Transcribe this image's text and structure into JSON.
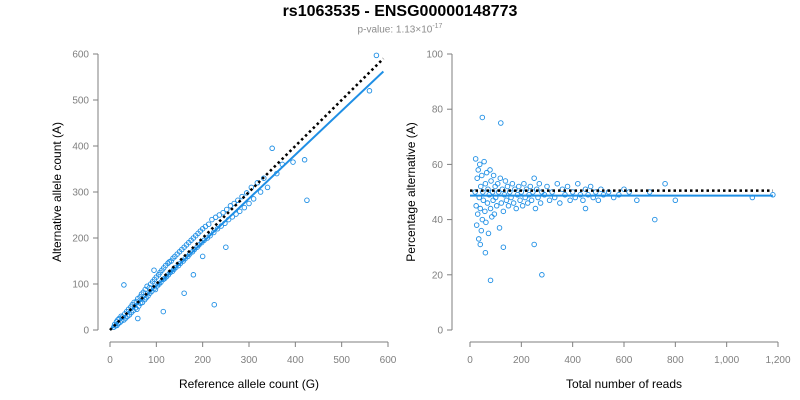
{
  "header": {
    "title": "rs1063535 - ENSG00000148773",
    "pvalue_prefix": "p-value: 1.13×10",
    "pvalue_exponent": "-17"
  },
  "colors": {
    "points": "#1f8fe5",
    "fit": "#1f8fe5",
    "reference": "#000000",
    "axis": "#7f7f7f"
  },
  "chart_data": [
    {
      "type": "scatter",
      "xlabel": "Reference allele count (G)",
      "ylabel": "Alternative allele count (A)",
      "xlim": [
        0,
        600
      ],
      "ylim": [
        0,
        600
      ],
      "xticks": [
        0,
        100,
        200,
        300,
        400,
        500,
        600
      ],
      "yticks": [
        0,
        100,
        200,
        300,
        400,
        500,
        600
      ],
      "xtick_labels": [
        "0",
        "100",
        "200",
        "300",
        "400",
        "500",
        "600"
      ],
      "ytick_labels": [
        "0",
        "100",
        "200",
        "300",
        "400",
        "500",
        "600"
      ],
      "reference_line": {
        "style": "dotted",
        "points": [
          [
            0,
            0
          ],
          [
            590,
            590
          ]
        ]
      },
      "fit_line": {
        "style": "solid",
        "points": [
          [
            0,
            0
          ],
          [
            590,
            562
          ]
        ]
      },
      "points": [
        [
          8,
          6
        ],
        [
          10,
          12
        ],
        [
          12,
          9
        ],
        [
          14,
          18
        ],
        [
          15,
          10
        ],
        [
          17,
          22
        ],
        [
          18,
          14
        ],
        [
          20,
          25
        ],
        [
          22,
          17
        ],
        [
          24,
          30
        ],
        [
          25,
          20
        ],
        [
          27,
          28
        ],
        [
          30,
          22
        ],
        [
          32,
          35
        ],
        [
          34,
          26
        ],
        [
          36,
          40
        ],
        [
          38,
          30
        ],
        [
          40,
          45
        ],
        [
          42,
          33
        ],
        [
          45,
          50
        ],
        [
          46,
          38
        ],
        [
          48,
          55
        ],
        [
          50,
          42
        ],
        [
          52,
          60
        ],
        [
          55,
          48
        ],
        [
          57,
          62
        ],
        [
          58,
          45
        ],
        [
          60,
          68
        ],
        [
          62,
          52
        ],
        [
          65,
          72
        ],
        [
          66,
          58
        ],
        [
          68,
          78
        ],
        [
          70,
          60
        ],
        [
          72,
          82
        ],
        [
          75,
          66
        ],
        [
          76,
          88
        ],
        [
          78,
          70
        ],
        [
          80,
          95
        ],
        [
          82,
          74
        ],
        [
          85,
          92
        ],
        [
          86,
          80
        ],
        [
          88,
          100
        ],
        [
          90,
          84
        ],
        [
          92,
          105
        ],
        [
          95,
          90
        ],
        [
          96,
          110
        ],
        [
          98,
          88
        ],
        [
          100,
          115
        ],
        [
          102,
          96
        ],
        [
          105,
          120
        ],
        [
          106,
          100
        ],
        [
          108,
          125
        ],
        [
          110,
          104
        ],
        [
          112,
          130
        ],
        [
          115,
          110
        ],
        [
          116,
          135
        ],
        [
          118,
          112
        ],
        [
          120,
          140
        ],
        [
          122,
          116
        ],
        [
          125,
          145
        ],
        [
          126,
          120
        ],
        [
          128,
          148
        ],
        [
          130,
          125
        ],
        [
          132,
          150
        ],
        [
          135,
          128
        ],
        [
          136,
          156
        ],
        [
          138,
          132
        ],
        [
          140,
          160
        ],
        [
          142,
          136
        ],
        [
          145,
          165
        ],
        [
          148,
          140
        ],
        [
          150,
          170
        ],
        [
          152,
          145
        ],
        [
          155,
          175
        ],
        [
          158,
          150
        ],
        [
          160,
          180
        ],
        [
          162,
          155
        ],
        [
          165,
          185
        ],
        [
          168,
          160
        ],
        [
          170,
          190
        ],
        [
          172,
          165
        ],
        [
          175,
          195
        ],
        [
          178,
          170
        ],
        [
          180,
          200
        ],
        [
          182,
          175
        ],
        [
          185,
          205
        ],
        [
          188,
          180
        ],
        [
          190,
          210
        ],
        [
          192,
          185
        ],
        [
          195,
          215
        ],
        [
          198,
          190
        ],
        [
          200,
          220
        ],
        [
          203,
          195
        ],
        [
          206,
          225
        ],
        [
          210,
          200
        ],
        [
          213,
          230
        ],
        [
          216,
          205
        ],
        [
          220,
          240
        ],
        [
          224,
          212
        ],
        [
          228,
          245
        ],
        [
          232,
          220
        ],
        [
          236,
          250
        ],
        [
          240,
          226
        ],
        [
          244,
          255
        ],
        [
          248,
          232
        ],
        [
          252,
          262
        ],
        [
          256,
          240
        ],
        [
          260,
          270
        ],
        [
          264,
          246
        ],
        [
          268,
          275
        ],
        [
          272,
          252
        ],
        [
          276,
          282
        ],
        [
          280,
          258
        ],
        [
          285,
          290
        ],
        [
          290,
          266
        ],
        [
          295,
          298
        ],
        [
          300,
          275
        ],
        [
          305,
          310
        ],
        [
          310,
          285
        ],
        [
          318,
          320
        ],
        [
          325,
          300
        ],
        [
          332,
          330
        ],
        [
          340,
          310
        ],
        [
          350,
          395
        ],
        [
          360,
          340
        ],
        [
          372,
          360
        ],
        [
          395,
          365
        ],
        [
          420,
          370
        ],
        [
          425,
          282
        ],
        [
          560,
          520
        ],
        [
          575,
          597
        ],
        [
          225,
          55
        ],
        [
          160,
          80
        ],
        [
          115,
          40
        ],
        [
          30,
          98
        ],
        [
          60,
          25
        ],
        [
          180,
          120
        ],
        [
          250,
          180
        ],
        [
          200,
          160
        ],
        [
          95,
          130
        ]
      ]
    },
    {
      "type": "scatter",
      "xlabel": "Total number of reads",
      "ylabel": "Percentage alternative (A)",
      "xlim": [
        0,
        1200
      ],
      "ylim": [
        0,
        100
      ],
      "xticks": [
        0,
        200,
        400,
        600,
        800,
        1000,
        1200
      ],
      "yticks": [
        0,
        20,
        40,
        60,
        80,
        100
      ],
      "xtick_labels": [
        "0",
        "200",
        "400",
        "600",
        "800",
        "1,000",
        "1,200"
      ],
      "ytick_labels": [
        "0",
        "20",
        "40",
        "60",
        "80",
        "100"
      ],
      "reference_line": {
        "style": "dotted",
        "points": [
          [
            0,
            50.5
          ],
          [
            1180,
            50.5
          ]
        ]
      },
      "fit_line": {
        "style": "solid",
        "points": [
          [
            0,
            48.7
          ],
          [
            1180,
            48.7
          ]
        ]
      },
      "points": [
        [
          20,
          50
        ],
        [
          22,
          62
        ],
        [
          24,
          45
        ],
        [
          26,
          38
        ],
        [
          28,
          55
        ],
        [
          30,
          42
        ],
        [
          32,
          58
        ],
        [
          34,
          33
        ],
        [
          36,
          48
        ],
        [
          38,
          60
        ],
        [
          40,
          44
        ],
        [
          42,
          52
        ],
        [
          44,
          36
        ],
        [
          46,
          56
        ],
        [
          48,
          40
        ],
        [
          50,
          50
        ],
        [
          52,
          47
        ],
        [
          55,
          61
        ],
        [
          58,
          43
        ],
        [
          60,
          53
        ],
        [
          62,
          39
        ],
        [
          65,
          57
        ],
        [
          68,
          46
        ],
        [
          70,
          51
        ],
        [
          72,
          35
        ],
        [
          75,
          49
        ],
        [
          78,
          58
        ],
        [
          80,
          44
        ],
        [
          82,
          54
        ],
        [
          85,
          41
        ],
        [
          88,
          50
        ],
        [
          90,
          47
        ],
        [
          92,
          56
        ],
        [
          95,
          42
        ],
        [
          98,
          52
        ],
        [
          100,
          48
        ],
        [
          104,
          45
        ],
        [
          108,
          53
        ],
        [
          112,
          50
        ],
        [
          115,
          37
        ],
        [
          118,
          55
        ],
        [
          122,
          46
        ],
        [
          126,
          51
        ],
        [
          130,
          43
        ],
        [
          134,
          49
        ],
        [
          138,
          54
        ],
        [
          142,
          47
        ],
        [
          146,
          52
        ],
        [
          150,
          45
        ],
        [
          155,
          50
        ],
        [
          160,
          48
        ],
        [
          165,
          53
        ],
        [
          170,
          46
        ],
        [
          175,
          51
        ],
        [
          180,
          44
        ],
        [
          185,
          49
        ],
        [
          190,
          52
        ],
        [
          195,
          47
        ],
        [
          200,
          50
        ],
        [
          205,
          45
        ],
        [
          210,
          53
        ],
        [
          215,
          48
        ],
        [
          220,
          51
        ],
        [
          225,
          46
        ],
        [
          230,
          49
        ],
        [
          235,
          52
        ],
        [
          240,
          47
        ],
        [
          245,
          50
        ],
        [
          250,
          55
        ],
        [
          255,
          44
        ],
        [
          260,
          51
        ],
        [
          265,
          48
        ],
        [
          270,
          53
        ],
        [
          275,
          46
        ],
        [
          280,
          50
        ],
        [
          290,
          49
        ],
        [
          300,
          52
        ],
        [
          310,
          47
        ],
        [
          320,
          50
        ],
        [
          330,
          48
        ],
        [
          340,
          53
        ],
        [
          350,
          46
        ],
        [
          360,
          51
        ],
        [
          370,
          49
        ],
        [
          380,
          52
        ],
        [
          390,
          47
        ],
        [
          400,
          50
        ],
        [
          410,
          48
        ],
        [
          420,
          53
        ],
        [
          430,
          49
        ],
        [
          440,
          47
        ],
        [
          450,
          51
        ],
        [
          460,
          49
        ],
        [
          470,
          52
        ],
        [
          480,
          48
        ],
        [
          490,
          50
        ],
        [
          500,
          47
        ],
        [
          510,
          51
        ],
        [
          520,
          49
        ],
        [
          540,
          50
        ],
        [
          560,
          48
        ],
        [
          580,
          49
        ],
        [
          600,
          51
        ],
        [
          620,
          50
        ],
        [
          650,
          47
        ],
        [
          700,
          50
        ],
        [
          720,
          40
        ],
        [
          760,
          53
        ],
        [
          800,
          47
        ],
        [
          1100,
          48
        ],
        [
          1180,
          49
        ],
        [
          48,
          77
        ],
        [
          120,
          75
        ],
        [
          80,
          18
        ],
        [
          280,
          20
        ],
        [
          60,
          28
        ],
        [
          40,
          31
        ],
        [
          130,
          30
        ],
        [
          250,
          31
        ],
        [
          450,
          44
        ]
      ]
    }
  ]
}
